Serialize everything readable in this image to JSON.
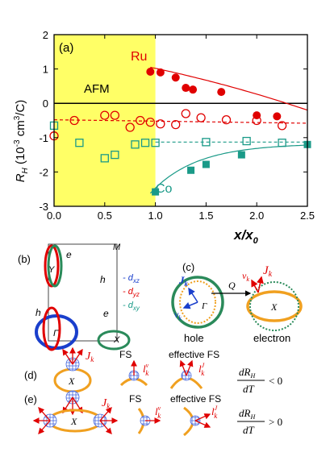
{
  "chart_data": {
    "type": "scatter",
    "panel_label": "(a)",
    "xlabel_main": "x/x",
    "xlabel_sub": "0",
    "ylabel_main": "R",
    "ylabel_sub": "H",
    "ylabel_rest": " (10",
    "ylabel_sup": "-3",
    "ylabel_unit": " cm",
    "ylabel_unit_sup": "3",
    "ylabel_end": "/C)",
    "xlim": [
      0.0,
      2.5
    ],
    "ylim": [
      -3,
      2
    ],
    "xticks": [
      "0.0",
      "0.5",
      "1.0",
      "1.5",
      "2.0",
      "2.5"
    ],
    "yticks": [
      "2",
      "1",
      "0",
      "-1",
      "-2",
      "-3"
    ],
    "shaded_region": {
      "x_from": 0.0,
      "x_to": 1.0,
      "color": "#ffff66",
      "label": "AFM"
    },
    "zero_line": true,
    "annotations": [
      {
        "text": "Ru",
        "color": "#e00000"
      },
      {
        "text": "Co",
        "color": "#1a9a88"
      }
    ],
    "series": [
      {
        "marker": "filled-circle",
        "color": "#e00000",
        "x": [
          0.95,
          1.05,
          1.2,
          1.3,
          1.37,
          1.65,
          2.0,
          2.2
        ],
        "y": [
          0.92,
          0.9,
          0.75,
          0.45,
          0.4,
          0.33,
          -0.35,
          -0.38
        ]
      },
      {
        "marker": "open-circle",
        "color": "#e00000",
        "x": [
          0.0,
          0.2,
          0.5,
          0.6,
          0.75,
          0.85,
          0.95,
          1.05,
          1.2,
          1.3,
          1.45,
          1.7,
          2.0,
          2.25
        ],
        "y": [
          -0.95,
          -0.5,
          -0.35,
          -0.35,
          -0.7,
          -0.5,
          -0.55,
          -0.6,
          -0.62,
          -0.3,
          -0.42,
          -0.48,
          -0.5,
          -0.65
        ]
      },
      {
        "marker": "open-square",
        "color": "#1a9a88",
        "x": [
          0.0,
          0.25,
          0.5,
          0.6,
          0.8,
          0.9,
          1.0,
          1.5,
          1.9,
          2.25
        ],
        "y": [
          -0.65,
          -1.15,
          -1.6,
          -1.5,
          -1.2,
          -1.15,
          -1.15,
          -1.13,
          -1.1,
          -1.15
        ]
      },
      {
        "marker": "filled-square",
        "color": "#1a9a88",
        "x": [
          1.0,
          1.35,
          1.5,
          1.85,
          2.5
        ],
        "y": [
          -2.58,
          -1.95,
          -1.78,
          -1.5,
          -1.2
        ]
      }
    ],
    "fit_lines": [
      {
        "style": "solid",
        "color": "#e00000",
        "x_from": 0.95,
        "x_to": 2.5,
        "shape": "decreasing"
      },
      {
        "style": "dashed",
        "color": "#e00000",
        "x_from": 0.0,
        "x_to": 2.5,
        "shape": "flat"
      },
      {
        "style": "dashed",
        "color": "#1a9a88",
        "x_from": 1.0,
        "x_to": 2.5,
        "shape": "flat"
      },
      {
        "style": "solid",
        "color": "#1a9a88",
        "x_from": 0.95,
        "x_to": 2.5,
        "shape": "increasing"
      }
    ]
  },
  "panel_b": {
    "label": "(b)",
    "points": {
      "Y": "Y",
      "M": "M",
      "Gamma": "Γ",
      "X": "X"
    },
    "edges": {
      "e_top": "e",
      "e_right": "e",
      "h_left": "h",
      "h_right": "h"
    },
    "legend": [
      {
        "prefix": "- ",
        "main": "d",
        "sub": "xz",
        "color": "#1a3fcc"
      },
      {
        "prefix": "- ",
        "main": "d",
        "sub": "yz",
        "color": "#e00000"
      },
      {
        "prefix": "- ",
        "main": "d",
        "sub": "xy",
        "color": "#1a9a88"
      }
    ]
  },
  "panel_c": {
    "label": "(c)",
    "J": "J",
    "J_sub": "k",
    "v": "v",
    "v_sub": "k",
    "Q": "Q",
    "Gamma": "Γ",
    "X": "X",
    "hole_label": "hole",
    "electron_label": "electron"
  },
  "panel_d": {
    "label": "(d)",
    "center": "X",
    "J": "J",
    "J_sub": "k",
    "fs_label": "FS",
    "effective_fs_label": "effective FS",
    "lv": "l",
    "lv_sup": "v",
    "lv_sub": "k",
    "lJ": "l",
    "lJ_sup": "J",
    "lJ_sub": "k",
    "criterion_num": "dR",
    "criterion_num_sub": "H",
    "criterion_den": "dT",
    "criterion_rel": "< 0"
  },
  "panel_e": {
    "label": "(e)",
    "center": "X",
    "J": "J",
    "J_sub": "k",
    "fs_label": "FS",
    "effective_fs_label": "effective FS",
    "lv": "l",
    "lv_sup": "v",
    "lv_sub": "k",
    "lJ": "l",
    "lJ_sup": "J",
    "lJ_sub": "k",
    "criterion_num": "dR",
    "criterion_num_sub": "H",
    "criterion_den": "dT",
    "criterion_rel": "> 0"
  },
  "colors": {
    "red": "#e00000",
    "teal": "#1a9a88",
    "blue": "#1a3fcc",
    "orange": "#f0a020",
    "green": "#2a8a5a",
    "yellow": "#ffff66"
  }
}
